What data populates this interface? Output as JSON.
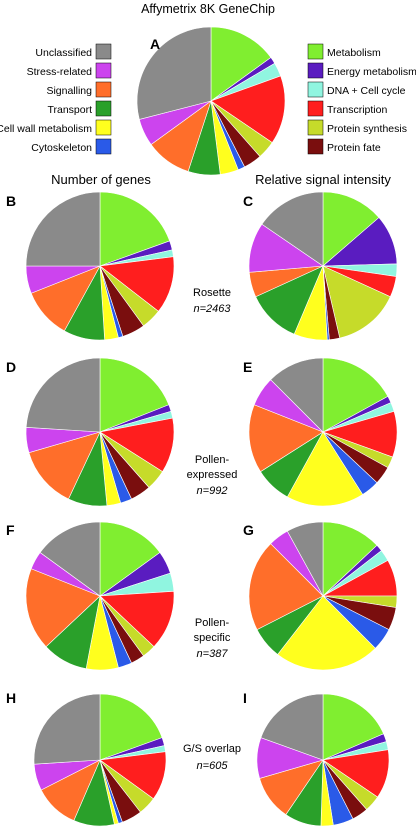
{
  "figure": {
    "title": "Affymetrix 8K GeneChip",
    "column_headers": [
      "Number of genes",
      "Relative signal intensity"
    ],
    "row_labels": [
      {
        "name": "Rosette",
        "n": "n=2463"
      },
      {
        "name": "Pollen-expressed",
        "lines": [
          "Pollen-",
          "expressed"
        ],
        "n": "n=992"
      },
      {
        "name": "Pollen-specific",
        "lines": [
          "Pollen-",
          "specific"
        ],
        "n": "n=387"
      },
      {
        "name": "G/S overlap",
        "n": "n=605"
      }
    ]
  },
  "legend": {
    "left": [
      "Unclassified",
      "Stress-related",
      "Signalling",
      "Transport",
      "Cell wall metabolism",
      "Cytoskeleton"
    ],
    "right": [
      "Metabolism",
      "Energy metabolism",
      "DNA + Cell cycle",
      "Transcription",
      "Protein synthesis",
      "Protein fate"
    ]
  },
  "chart_data": {
    "type": "pie",
    "categories": [
      "Metabolism",
      "Energy metabolism",
      "DNA + Cell cycle",
      "Transcription",
      "Protein synthesis",
      "Protein fate",
      "Cytoskeleton",
      "Cell wall metabolism",
      "Transport",
      "Signalling",
      "Stress-related",
      "Unclassified"
    ],
    "colors": [
      "#80ee30",
      "#5a1cc0",
      "#90f5e0",
      "#ff1e1e",
      "#c6db2a",
      "#7a0e0e",
      "#2a5ae8",
      "#ffff1e",
      "#2aa02a",
      "#ff6e2a",
      "#cc44ee",
      "#8a8a8a"
    ],
    "units": "percent",
    "panels": [
      {
        "label": "A",
        "values": [
          15.0,
          1.5,
          3.0,
          15.0,
          4.0,
          4.0,
          1.5,
          4.0,
          7.0,
          10.0,
          6.0,
          29.0
        ]
      },
      {
        "label": "B",
        "values": [
          19.5,
          2.0,
          1.5,
          12.5,
          4.5,
          5.0,
          1.0,
          3.0,
          9.0,
          11.0,
          6.0,
          25.0
        ]
      },
      {
        "label": "C",
        "values": [
          15.0,
          12.0,
          3.0,
          5.0,
          16.0,
          2.5,
          0.5,
          8.0,
          13.0,
          6.0,
          12.0,
          17.0
        ]
      },
      {
        "label": "D",
        "values": [
          19.0,
          1.5,
          1.5,
          12.0,
          4.5,
          4.5,
          2.5,
          3.0,
          8.5,
          13.5,
          5.5,
          24.0
        ]
      },
      {
        "label": "E",
        "values": [
          17.0,
          1.5,
          2.0,
          10.0,
          2.5,
          4.0,
          4.0,
          17.0,
          8.0,
          15.0,
          6.5,
          12.5
        ]
      },
      {
        "label": "F",
        "values": [
          15.0,
          5.0,
          4.0,
          13.0,
          3.0,
          3.0,
          3.0,
          7.0,
          10.0,
          18.0,
          4.0,
          15.0
        ]
      },
      {
        "label": "G",
        "values": [
          13.0,
          1.5,
          2.5,
          8.0,
          2.5,
          5.0,
          5.0,
          23.0,
          7.0,
          20.0,
          4.5,
          8.0
        ]
      },
      {
        "label": "H",
        "values": [
          19.5,
          2.0,
          1.5,
          12.0,
          4.5,
          5.0,
          1.0,
          1.0,
          10.0,
          11.0,
          6.5,
          26.0
        ]
      },
      {
        "label": "I",
        "values": [
          18.5,
          2.0,
          2.0,
          12.0,
          4.0,
          4.0,
          5.0,
          3.0,
          9.0,
          11.0,
          10.0,
          19.5
        ]
      }
    ]
  }
}
